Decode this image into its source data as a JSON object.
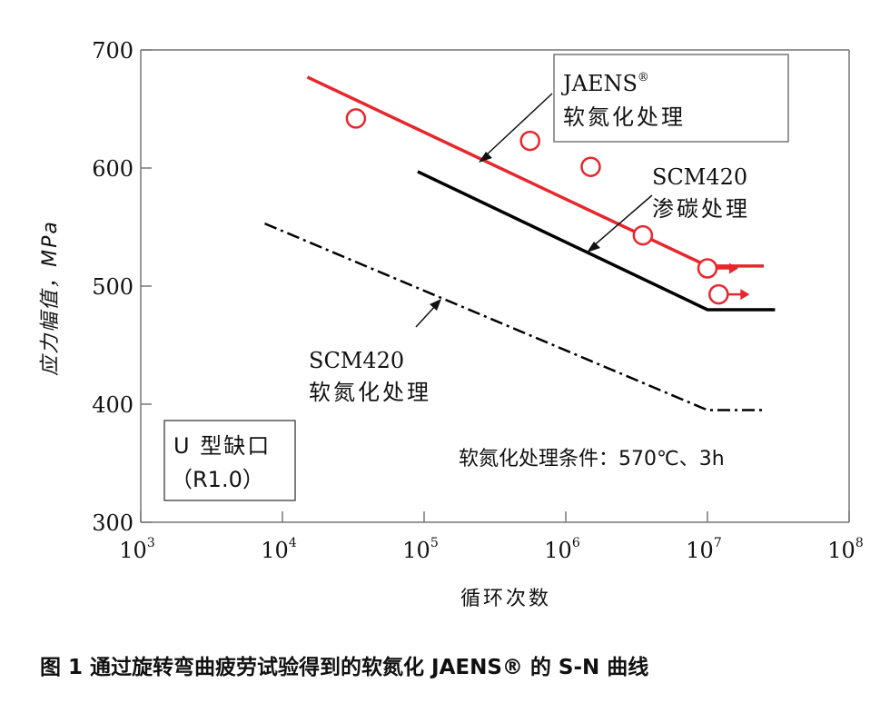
{
  "chart_data": {
    "type": "line",
    "title": "图 1 通过旋转弯曲疲劳试验得到的软氮化 JAENS® 的 S-N 曲线",
    "xlabel": "循环次数",
    "ylabel": "应力幅值，MPa",
    "x_scale": "log10",
    "xlim_exp": [
      3,
      8
    ],
    "ylim": [
      300,
      700
    ],
    "x_ticks": [
      {
        "base": "10",
        "exp": "3"
      },
      {
        "base": "10",
        "exp": "4"
      },
      {
        "base": "10",
        "exp": "5"
      },
      {
        "base": "10",
        "exp": "6"
      },
      {
        "base": "10",
        "exp": "7"
      },
      {
        "base": "10",
        "exp": "8"
      }
    ],
    "y_ticks": [
      "300",
      "400",
      "500",
      "600",
      "700"
    ],
    "y_tick_values": [
      300,
      400,
      500,
      600,
      700
    ],
    "series": [
      {
        "name": "JAENS® 软氮化处理",
        "label_line1": "JAENS",
        "label_sup": "®",
        "label_line2": "软氮化处理",
        "color": "#e8262d",
        "style": "solid",
        "points": [
          [
            15000,
            677
          ],
          [
            10000000,
            517
          ],
          [
            25000000,
            517
          ]
        ],
        "markers": [
          {
            "x": 33000,
            "y": 642,
            "runout": false
          },
          {
            "x": 560000,
            "y": 623,
            "runout": false
          },
          {
            "x": 1500000,
            "y": 601,
            "runout": false
          },
          {
            "x": 3500000,
            "y": 543,
            "runout": false
          },
          {
            "x": 10000000,
            "y": 515,
            "runout": true
          },
          {
            "x": 12000000,
            "y": 493,
            "runout": true
          }
        ]
      },
      {
        "name": "SCM420 渗碳处理",
        "label_line1": "SCM420",
        "label_line2": "渗碳处理",
        "color": "#000000",
        "style": "solid",
        "points": [
          [
            90000,
            597
          ],
          [
            10000000,
            480
          ],
          [
            30000000,
            480
          ]
        ]
      },
      {
        "name": "SCM420 软氮化处理",
        "label_line1": "SCM420",
        "label_line2": "软氮化处理",
        "color": "#000000",
        "style": "dashdot",
        "points": [
          [
            7500,
            553
          ],
          [
            10000000,
            395
          ],
          [
            25000000,
            395
          ]
        ]
      }
    ],
    "notes": {
      "notch_line1": "U 型缺口",
      "notch_line2": "（R1.0）",
      "condition": "软氮化处理条件：570℃、3h"
    }
  }
}
